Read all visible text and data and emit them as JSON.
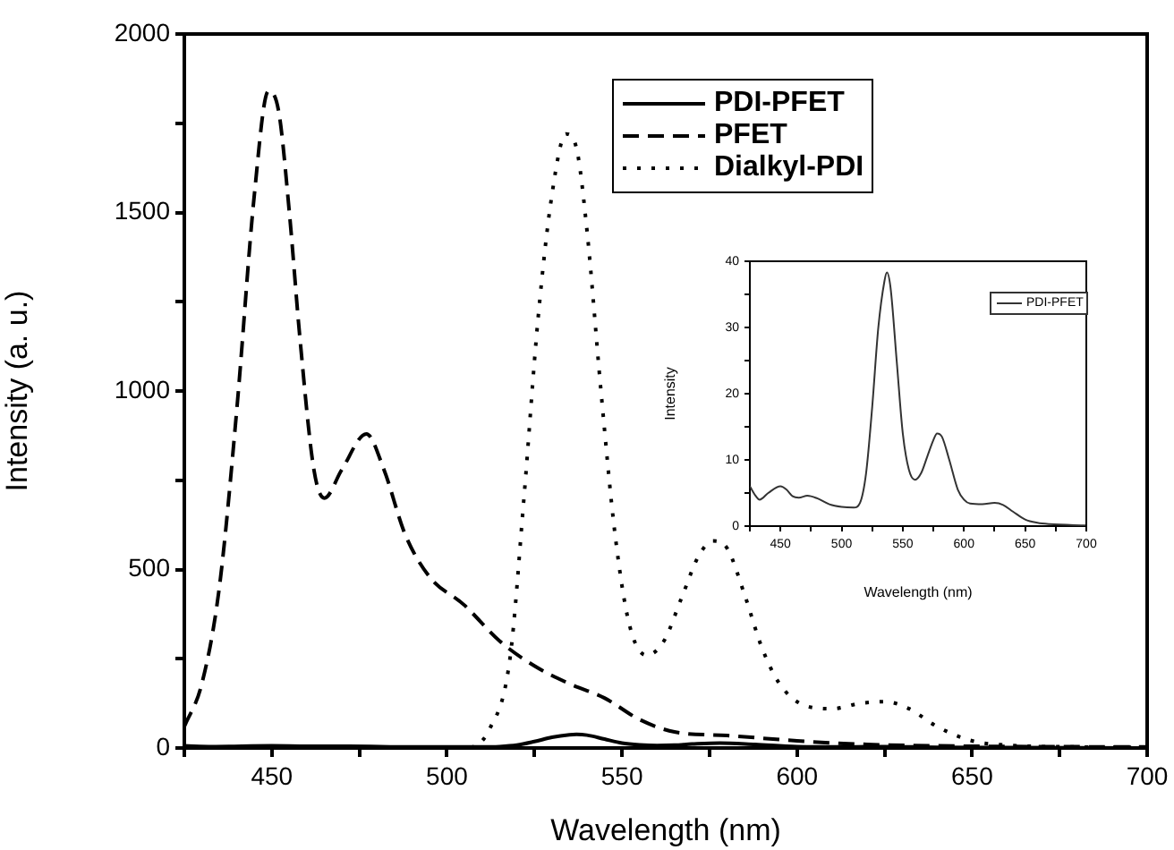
{
  "chart_data": [
    {
      "type": "line",
      "xlabel": "Wavelength (nm)",
      "ylabel": "Intensity (a. u.)",
      "xlim": [
        425,
        700
      ],
      "ylim": [
        0,
        2000
      ],
      "xticks": [
        {
          "value": 425,
          "label": null
        },
        450,
        {
          "value": 475,
          "label": null
        },
        500,
        {
          "value": 525,
          "label": null
        },
        550,
        {
          "value": 575,
          "label": null
        },
        600,
        {
          "value": 625,
          "label": null
        },
        650,
        {
          "value": 675,
          "label": null
        },
        700
      ],
      "yticks": [
        0,
        {
          "value": 250,
          "label": null
        },
        500,
        {
          "value": 750,
          "label": null
        },
        1000,
        {
          "value": 1250,
          "label": null
        },
        1500,
        {
          "value": 1750,
          "label": null
        },
        2000
      ],
      "grid": false,
      "legend": "top",
      "marker": "none",
      "series": [
        {
          "name": "PDI-PFET",
          "color": "#000000",
          "line_style": "solid",
          "x": [
            425,
            433,
            450,
            460,
            472,
            490,
            510,
            515,
            520,
            525,
            530,
            535,
            537,
            540,
            545,
            550,
            555,
            560,
            565,
            570,
            578,
            588,
            600,
            615,
            625,
            640,
            660,
            700
          ],
          "values": [
            6,
            4,
            6,
            5,
            5,
            3,
            3,
            4,
            8,
            18,
            30,
            37,
            38,
            36,
            25,
            14,
            9,
            7,
            8,
            11,
            14,
            10,
            4,
            3,
            4,
            2,
            1,
            0
          ]
        },
        {
          "name": "PFET",
          "color": "#000000",
          "line_style": "dashed",
          "x": [
            425,
            430,
            435,
            440,
            445,
            449,
            452,
            455,
            458,
            462,
            465,
            470,
            477,
            482,
            488,
            495,
            505,
            515,
            525,
            535,
            545,
            555,
            565,
            580,
            600,
            620,
            650,
            700
          ],
          "values": [
            60,
            180,
            450,
            950,
            1550,
            1840,
            1780,
            1500,
            1150,
            780,
            700,
            780,
            880,
            780,
            600,
            480,
            400,
            300,
            230,
            180,
            140,
            80,
            45,
            35,
            20,
            10,
            5,
            3
          ]
        },
        {
          "name": "Dialkyl-PDI",
          "color": "#000000",
          "line_style": "dotted",
          "x": [
            425,
            505,
            512,
            518,
            522,
            526,
            530,
            534,
            537,
            540,
            544,
            548,
            552,
            557,
            562,
            567,
            572,
            576,
            580,
            585,
            590,
            595,
            602,
            610,
            618,
            625,
            632,
            640,
            650,
            660,
            680,
            700
          ],
          "values": [
            0,
            0,
            50,
            250,
            700,
            1200,
            1550,
            1720,
            1680,
            1450,
            1000,
            600,
            350,
            260,
            300,
            420,
            540,
            580,
            560,
            430,
            280,
            180,
            120,
            110,
            125,
            130,
            110,
            60,
            20,
            8,
            3,
            2
          ]
        }
      ]
    },
    {
      "type": "line",
      "xlabel": "Wavelength (nm)",
      "ylabel": "Intensity",
      "xlim": [
        425,
        700
      ],
      "ylim": [
        0,
        40
      ],
      "xticks": [
        {
          "value": 425,
          "label": null
        },
        450,
        {
          "value": 475,
          "label": null
        },
        500,
        {
          "value": 525,
          "label": null
        },
        550,
        {
          "value": 575,
          "label": null
        },
        600,
        {
          "value": 625,
          "label": null
        },
        650,
        {
          "value": 675,
          "label": null
        },
        700
      ],
      "yticks": [
        0,
        {
          "value": 5,
          "label": null
        },
        10,
        {
          "value": 15,
          "label": null
        },
        20,
        {
          "value": 25,
          "label": null
        },
        30,
        {
          "value": 35,
          "label": null
        },
        40
      ],
      "grid": false,
      "legend": "top right",
      "marker": "none",
      "series": [
        {
          "name": "PDI-PFET",
          "color": "#333333",
          "line_style": "solid",
          "x": [
            425,
            430,
            433,
            440,
            450,
            455,
            460,
            465,
            472,
            480,
            490,
            500,
            510,
            515,
            520,
            525,
            530,
            535,
            537,
            540,
            545,
            550,
            555,
            560,
            565,
            570,
            575,
            578,
            582,
            588,
            595,
            600,
            605,
            615,
            625,
            632,
            640,
            650,
            660,
            670,
            700
          ],
          "values": [
            6,
            4.5,
            4,
            5,
            6,
            5.5,
            4.5,
            4.3,
            4.6,
            4.2,
            3.3,
            2.9,
            2.8,
            3.5,
            8,
            18,
            30,
            37,
            38.3,
            36,
            25,
            14,
            8.5,
            7,
            8,
            10.5,
            13,
            14,
            13.5,
            10,
            5.5,
            4,
            3.4,
            3.3,
            3.5,
            3.2,
            2.2,
            1,
            0.5,
            0.3,
            0.1
          ]
        }
      ]
    }
  ]
}
